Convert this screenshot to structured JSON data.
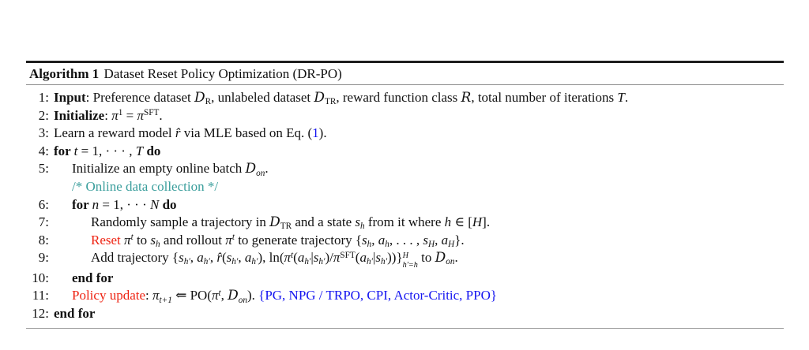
{
  "colors": {
    "red": "#ee2211",
    "blue": "#1414f0",
    "teal": "#3a9e9c"
  },
  "algorithm": {
    "header": {
      "label": "Algorithm 1",
      "title": "Dataset Reset Policy Optimization (DR-PO)"
    },
    "lines": [
      {
        "n": "1:",
        "indent": 0,
        "seg": [
          {
            "t": "Input",
            "st": "b"
          },
          {
            "t": ": Preference dataset "
          },
          {
            "t": "D",
            "st": "cal"
          },
          {
            "t": "R",
            "st": "sub"
          },
          {
            "t": ", unlabeled dataset "
          },
          {
            "t": "D",
            "st": "cal"
          },
          {
            "t": "TR",
            "st": "sub"
          },
          {
            "t": ", reward function class "
          },
          {
            "t": "R",
            "st": "cal"
          },
          {
            "t": ", total number of iterations "
          },
          {
            "t": "T",
            "st": "i"
          },
          {
            "t": "."
          }
        ]
      },
      {
        "n": "2:",
        "indent": 0,
        "seg": [
          {
            "t": "Initialize",
            "st": "b"
          },
          {
            "t": ": "
          },
          {
            "t": "π",
            "st": "i"
          },
          {
            "t": "1",
            "st": "sup"
          },
          {
            "t": " = "
          },
          {
            "t": "π",
            "st": "i"
          },
          {
            "t": "SFT",
            "st": "sup"
          },
          {
            "t": "."
          }
        ]
      },
      {
        "n": "3:",
        "indent": 0,
        "seg": [
          {
            "t": "Learn a reward model "
          },
          {
            "t": "r̂",
            "st": "i"
          },
          {
            "t": " via MLE based on Eq. ("
          },
          {
            "t": "1",
            "st": "blue"
          },
          {
            "t": ")."
          }
        ]
      },
      {
        "n": "4:",
        "indent": 0,
        "seg": [
          {
            "t": "for ",
            "st": "b"
          },
          {
            "t": "t",
            "st": "i"
          },
          {
            "t": " = 1, · · · , "
          },
          {
            "t": "T",
            "st": "i"
          },
          {
            "t": " do",
            "st": "b"
          }
        ]
      },
      {
        "n": "5:",
        "indent": 1,
        "seg": [
          {
            "t": "Initialize an empty online batch "
          },
          {
            "t": "D",
            "st": "cal"
          },
          {
            "t": "on",
            "st": "isub"
          },
          {
            "t": "."
          }
        ]
      },
      {
        "n": "",
        "indent": 1,
        "seg": [
          {
            "t": "/* Online data collection */",
            "st": "teal"
          }
        ]
      },
      {
        "n": "6:",
        "indent": 1,
        "seg": [
          {
            "t": "for ",
            "st": "b"
          },
          {
            "t": "n",
            "st": "i"
          },
          {
            "t": " = 1, · · · "
          },
          {
            "t": "N",
            "st": "i"
          },
          {
            "t": " do",
            "st": "b"
          }
        ]
      },
      {
        "n": "7:",
        "indent": 2,
        "seg": [
          {
            "t": "Randomly sample a trajectory in "
          },
          {
            "t": "D",
            "st": "cal"
          },
          {
            "t": "TR",
            "st": "sub"
          },
          {
            "t": " and a state "
          },
          {
            "t": "s",
            "st": "i"
          },
          {
            "t": "h",
            "st": "isub"
          },
          {
            "t": " from it where "
          },
          {
            "t": "h",
            "st": "i"
          },
          {
            "t": " ∈ ["
          },
          {
            "t": "H",
            "st": "i"
          },
          {
            "t": "]."
          }
        ]
      },
      {
        "n": "8:",
        "indent": 2,
        "seg": [
          {
            "t": "Reset",
            "st": "red"
          },
          {
            "t": " "
          },
          {
            "t": "π",
            "st": "i"
          },
          {
            "t": "t",
            "st": "isup"
          },
          {
            "t": " to "
          },
          {
            "t": "s",
            "st": "i"
          },
          {
            "t": "h",
            "st": "isub"
          },
          {
            "t": " and rollout "
          },
          {
            "t": "π",
            "st": "i"
          },
          {
            "t": "t",
            "st": "isup"
          },
          {
            "t": " to generate trajectory {"
          },
          {
            "t": "s",
            "st": "i"
          },
          {
            "t": "h",
            "st": "isub"
          },
          {
            "t": ", "
          },
          {
            "t": "a",
            "st": "i"
          },
          {
            "t": "h",
            "st": "isub"
          },
          {
            "t": ", . . . , "
          },
          {
            "t": "s",
            "st": "i"
          },
          {
            "t": "H",
            "st": "isub"
          },
          {
            "t": ", "
          },
          {
            "t": "a",
            "st": "i"
          },
          {
            "t": "H",
            "st": "isub"
          },
          {
            "t": "}."
          }
        ]
      },
      {
        "n": "9:",
        "indent": 2,
        "seg": [
          {
            "t": "Add trajectory {"
          },
          {
            "t": "s",
            "st": "i"
          },
          {
            "t": "h′",
            "st": "isub"
          },
          {
            "t": ", "
          },
          {
            "t": "a",
            "st": "i"
          },
          {
            "t": "h′",
            "st": "isub"
          },
          {
            "t": ", "
          },
          {
            "t": "r̂",
            "st": "i"
          },
          {
            "t": "("
          },
          {
            "t": "s",
            "st": "i"
          },
          {
            "t": "h′",
            "st": "isub"
          },
          {
            "t": ", "
          },
          {
            "t": "a",
            "st": "i"
          },
          {
            "t": "h′",
            "st": "isub"
          },
          {
            "t": "), ln("
          },
          {
            "t": "π",
            "st": "i"
          },
          {
            "t": "t",
            "st": "isup"
          },
          {
            "t": "("
          },
          {
            "t": "a",
            "st": "i"
          },
          {
            "t": "h′",
            "st": "isub"
          },
          {
            "t": "|"
          },
          {
            "t": "s",
            "st": "i"
          },
          {
            "t": "h′",
            "st": "isub"
          },
          {
            "t": ")/"
          },
          {
            "t": "π",
            "st": "i"
          },
          {
            "t": "SFT",
            "st": "sup"
          },
          {
            "t": "("
          },
          {
            "t": "a",
            "st": "i"
          },
          {
            "t": "h′",
            "st": "isub"
          },
          {
            "t": "|"
          },
          {
            "t": "s",
            "st": "i"
          },
          {
            "t": "h′",
            "st": "isub"
          },
          {
            "t": "))}"
          },
          {
            "stack": {
              "sup": "H",
              "sub": "h′=h"
            }
          },
          {
            "t": " to "
          },
          {
            "t": "D",
            "st": "cal"
          },
          {
            "t": "on",
            "st": "isub"
          },
          {
            "t": "."
          }
        ]
      },
      {
        "n": "10:",
        "indent": 1,
        "seg": [
          {
            "t": "end for",
            "st": "b"
          }
        ]
      },
      {
        "n": "11:",
        "indent": 1,
        "seg": [
          {
            "t": "Policy update",
            "st": "red"
          },
          {
            "t": ": "
          },
          {
            "t": "π",
            "st": "i"
          },
          {
            "t": "t+1",
            "st": "isub"
          },
          {
            "t": " ⇐ PO("
          },
          {
            "t": "π",
            "st": "i"
          },
          {
            "t": "t",
            "st": "isup"
          },
          {
            "t": ", "
          },
          {
            "t": "D",
            "st": "cal"
          },
          {
            "t": "on",
            "st": "isub"
          },
          {
            "t": "). "
          },
          {
            "t": "{PG, NPG / TRPO, CPI, Actor-Critic, PPO}",
            "st": "blue"
          }
        ]
      },
      {
        "n": "12:",
        "indent": 0,
        "seg": [
          {
            "t": "end for",
            "st": "b"
          }
        ]
      }
    ]
  }
}
